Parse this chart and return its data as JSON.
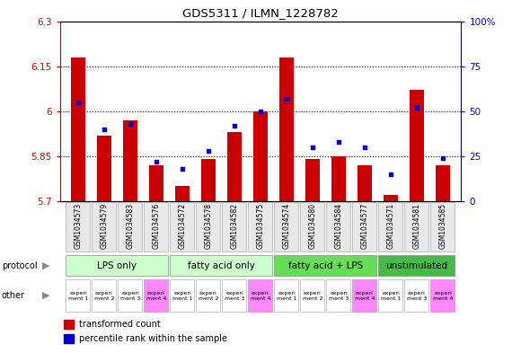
{
  "title": "GDS5311 / ILMN_1228782",
  "samples": [
    "GSM1034573",
    "GSM1034579",
    "GSM1034583",
    "GSM1034576",
    "GSM1034572",
    "GSM1034578",
    "GSM1034582",
    "GSM1034575",
    "GSM1034574",
    "GSM1034580",
    "GSM1034584",
    "GSM1034577",
    "GSM1034571",
    "GSM1034581",
    "GSM1034585"
  ],
  "red_values": [
    6.18,
    5.92,
    5.97,
    5.82,
    5.75,
    5.84,
    5.93,
    6.0,
    6.18,
    5.84,
    5.85,
    5.82,
    5.72,
    6.07,
    5.82
  ],
  "blue_values": [
    55,
    40,
    43,
    22,
    18,
    28,
    42,
    50,
    57,
    30,
    33,
    30,
    15,
    52,
    24
  ],
  "ylim_left": [
    5.7,
    6.3
  ],
  "ylim_right": [
    0,
    100
  ],
  "yticks_left": [
    5.7,
    5.85,
    6.0,
    6.15,
    6.3
  ],
  "ytick_labels_left": [
    "5.7",
    "5.85",
    "6",
    "6.15",
    "6.3"
  ],
  "yticks_right": [
    0,
    25,
    50,
    75,
    100
  ],
  "ytick_labels_right": [
    "0",
    "25",
    "50",
    "75",
    "100%"
  ],
  "protocol_groups": [
    {
      "label": "LPS only",
      "start": 0,
      "end": 4,
      "color": "#ccffcc"
    },
    {
      "label": "fatty acid only",
      "start": 4,
      "end": 8,
      "color": "#ccffcc"
    },
    {
      "label": "fatty acid + LPS",
      "start": 8,
      "end": 12,
      "color": "#66dd55"
    },
    {
      "label": "unstimulated",
      "start": 12,
      "end": 15,
      "color": "#44bb44"
    }
  ],
  "other_labels": [
    "experi\nment 1",
    "experi\nment 2",
    "experi\nment 3",
    "experi\nment 4",
    "experi\nment 1",
    "experi\nment 2",
    "experi\nment 3",
    "experi\nment 4",
    "experi\nment 1",
    "experi\nment 2",
    "experi\nment 3",
    "experi\nment 4",
    "experi\nment 1",
    "experi\nment 3",
    "experi\nment 4"
  ],
  "other_colors": [
    "#ffffff",
    "#ffffff",
    "#ffffff",
    "#ff88ff",
    "#ffffff",
    "#ffffff",
    "#ffffff",
    "#ff88ff",
    "#ffffff",
    "#ffffff",
    "#ffffff",
    "#ff88ff",
    "#ffffff",
    "#ffffff",
    "#ff88ff"
  ],
  "bar_color": "#cc0000",
  "dot_color": "#0000cc",
  "axis_left_color": "#cc0000",
  "axis_right_color": "#0000cc",
  "bg_color": "#e8e8e8",
  "dotted_line_color": "#000000",
  "label_arrow_color": "#888888"
}
